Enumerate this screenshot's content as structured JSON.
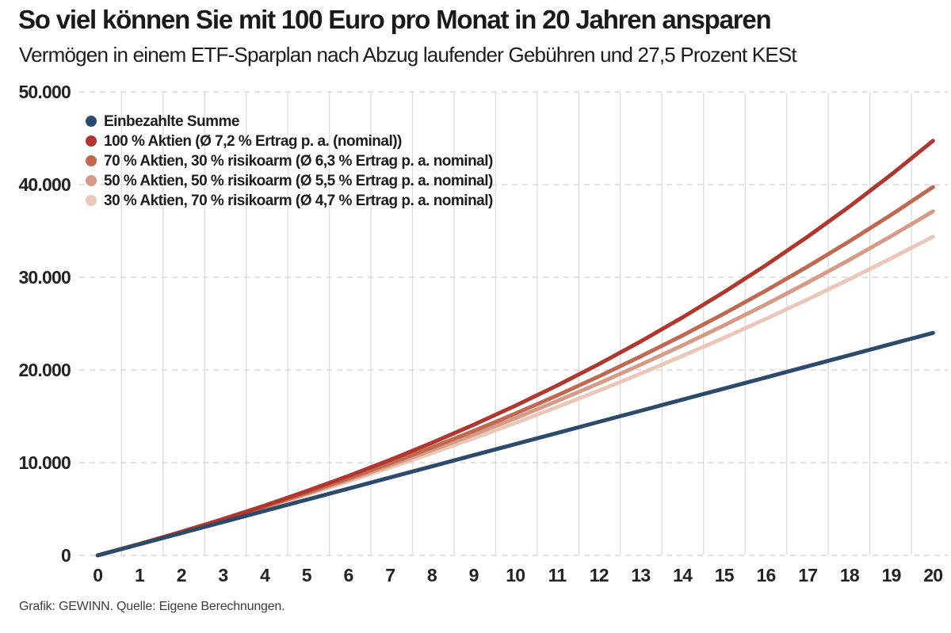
{
  "chart_data": {
    "type": "line",
    "title": "So viel können Sie mit 100 Euro pro Monat in 20 Jahren ansparen",
    "subtitle": "Vermögen in einem ETF-Sparplan nach Abzug laufender Gebühren und 27,5 Prozent KESt",
    "source_note": "Grafik: GEWINN. Quelle: Eigene Berechnungen.",
    "xlabel": "",
    "ylabel": "",
    "xlim": [
      0,
      20
    ],
    "ylim": [
      0,
      50000
    ],
    "x": [
      0,
      1,
      2,
      3,
      4,
      5,
      6,
      7,
      8,
      9,
      10,
      11,
      12,
      13,
      14,
      15,
      16,
      17,
      18,
      19,
      20
    ],
    "xtick_labels": [
      "0",
      "1",
      "2",
      "3",
      "4",
      "5",
      "6",
      "7",
      "8",
      "9",
      "10",
      "11",
      "12",
      "13",
      "14",
      "15",
      "16",
      "17",
      "18",
      "19",
      "20"
    ],
    "yticks": [
      0,
      10000,
      20000,
      30000,
      40000,
      50000
    ],
    "ytick_labels": [
      "0",
      "10.000",
      "20.000",
      "30.000",
      "40.000",
      "50.000"
    ],
    "legend_position": "top-left",
    "grid": {
      "vertical_style": "solid",
      "vertical_color": "#dcdcdc",
      "horizontal_style": "dashed",
      "horizontal_color": "#d9d9d9"
    },
    "series": [
      {
        "name": "Einbezahlte Summe",
        "color": "#2c4a6c",
        "values": [
          0,
          1200,
          2400,
          3600,
          4800,
          6000,
          7200,
          8400,
          9600,
          10800,
          12000,
          13200,
          14400,
          15600,
          16800,
          18000,
          19200,
          20400,
          21600,
          22800,
          24000
        ]
      },
      {
        "name": "100 % Aktien (Ø 7,2 % Ertrag p. a. (nominal))",
        "color": "#b0362e",
        "values": [
          0,
          1232,
          2536,
          3917,
          5380,
          6928,
          8567,
          10302,
          12140,
          14085,
          16145,
          18326,
          20635,
          23079,
          25667,
          28408,
          31310,
          34382,
          37634,
          41078,
          44724
        ]
      },
      {
        "name": "70 % Aktien, 30 % risikoarm (Ø 6,3 % Ertrag p. a. nominal)",
        "color": "#c06850",
        "values": [
          0,
          1226,
          2513,
          3861,
          5272,
          6752,
          8303,
          9928,
          11632,
          13418,
          15289,
          17250,
          19306,
          21460,
          23718,
          26085,
          28565,
          31164,
          33889,
          36744,
          39737
        ]
      },
      {
        "name": "50 % Aktien, 50 % risikoarm (Ø 5,5 % Ertrag p. a. nominal)",
        "color": "#d69a87",
        "values": [
          0,
          1223,
          2497,
          3824,
          5207,
          6648,
          8148,
          9712,
          11341,
          13038,
          14806,
          16648,
          18567,
          20566,
          22649,
          24819,
          27080,
          29435,
          31889,
          34445,
          37108
        ]
      },
      {
        "name": "30 % Aktien, 70 % risikoarm (Ø 4,7 % Ertrag p. a. nominal)",
        "color": "#eac7b9",
        "values": [
          0,
          1219,
          2480,
          3785,
          5136,
          6533,
          7979,
          9475,
          11023,
          12625,
          14283,
          15998,
          17773,
          19610,
          21510,
          23476,
          25511,
          27616,
          29795,
          32049,
          34381
        ]
      }
    ]
  }
}
